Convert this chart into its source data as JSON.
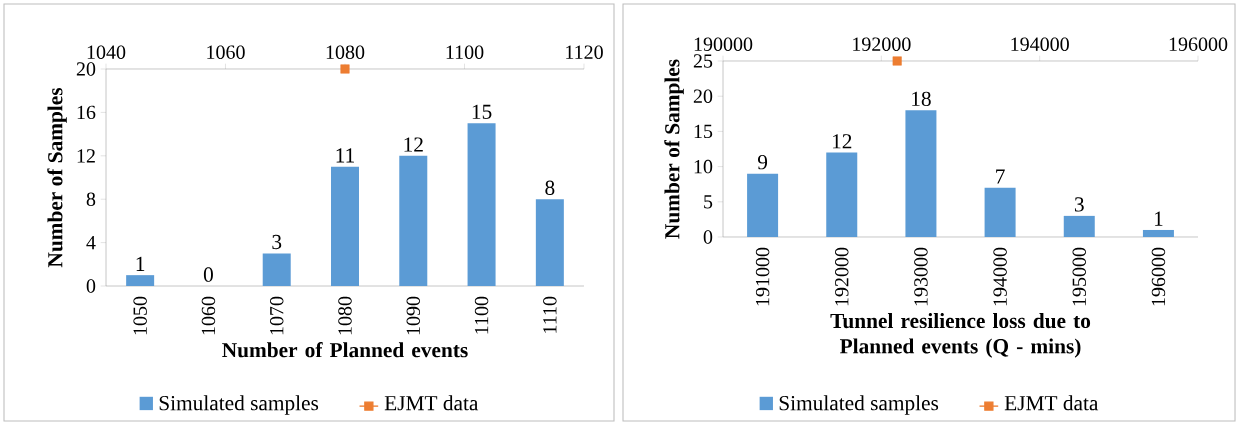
{
  "chart_data": [
    {
      "type": "bar",
      "categories": [
        "1050",
        "1060",
        "1070",
        "1080",
        "1090",
        "1100",
        "1110"
      ],
      "xlabel": "Number of Planned events",
      "ylabel": "Number of Samples",
      "ylim": [
        0,
        20
      ],
      "yticks": [
        0,
        4,
        8,
        12,
        16,
        20
      ],
      "x2lim": [
        1040,
        1120
      ],
      "x2ticks": [
        1040,
        1060,
        1080,
        1100,
        1120
      ],
      "legend": "bottom",
      "series": [
        {
          "name": "Simulated samples",
          "color": "#5b9bd5",
          "values": [
            1,
            0,
            3,
            11,
            12,
            15,
            8
          ],
          "value_labels": [
            "1",
            "0",
            "3",
            "11",
            "12",
            "15",
            "8"
          ]
        },
        {
          "name": "EJMT data",
          "type": "scatter",
          "axis": "x2",
          "color": "#ed7d31",
          "marker": "square",
          "x": [
            1080
          ],
          "values": [
            20
          ]
        }
      ]
    },
    {
      "type": "bar",
      "categories": [
        "191000",
        "192000",
        "193000",
        "194000",
        "195000",
        "196000"
      ],
      "xlabel": "Tunnel resilience loss due to Planned events (Q - mins)",
      "ylabel": "Number of Samples",
      "ylim": [
        0,
        25
      ],
      "yticks": [
        0,
        5,
        10,
        15,
        20,
        25
      ],
      "x2lim": [
        190000,
        196000
      ],
      "x2ticks": [
        190000,
        192000,
        194000,
        196000
      ],
      "legend": "bottom",
      "series": [
        {
          "name": "Simulated samples",
          "color": "#5b9bd5",
          "values": [
            9,
            12,
            18,
            7,
            3,
            1
          ],
          "value_labels": [
            "9",
            "12",
            "18",
            "7",
            "3",
            "1"
          ]
        },
        {
          "name": "EJMT data",
          "type": "scatter",
          "axis": "x2",
          "color": "#ed7d31",
          "marker": "square",
          "x": [
            192200
          ],
          "values": [
            25
          ]
        }
      ]
    }
  ]
}
